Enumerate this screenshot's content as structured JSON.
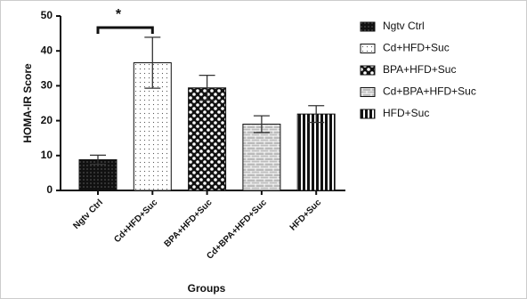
{
  "chart_data": {
    "type": "bar",
    "categories": [
      "Ngtv Ctrl",
      "Cd+HFD+Suc",
      "BPA+HFD+Suc",
      "Cd+BPA+HFD+Suc",
      "HFD+Suc"
    ],
    "values": [
      8.8,
      36.6,
      29.4,
      19.0,
      21.9
    ],
    "errors": [
      1.3,
      7.3,
      3.6,
      2.4,
      2.4
    ],
    "ylabel": "HOMA-IR Score",
    "xlabel": "Groups",
    "ylim": [
      0,
      50
    ],
    "yticks": [
      0,
      10,
      20,
      30,
      40,
      50
    ],
    "annotation": "*",
    "legend": "right"
  }
}
